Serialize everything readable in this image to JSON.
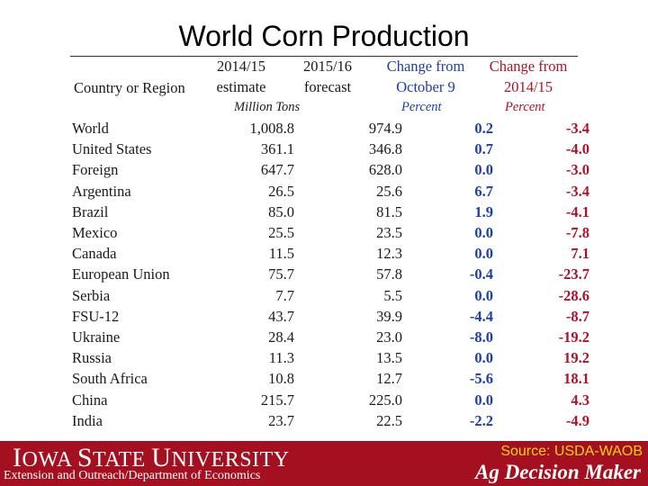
{
  "title": "World Corn Production",
  "headers": {
    "country_label": "Country or Region",
    "col1": [
      "2014/15",
      "estimate"
    ],
    "col2": [
      "2015/16",
      "forecast"
    ],
    "col3": [
      "Change from",
      "October 9"
    ],
    "col4": [
      "Change from",
      "2014/15"
    ],
    "units": "Million Tons",
    "pct3": "Percent",
    "pct4": "Percent"
  },
  "rows": [
    {
      "name": "World",
      "indent": 1,
      "estimate": "1,008.8",
      "forecast": "974.9",
      "chg_oct": "0.2",
      "chg_yr": "-3.4"
    },
    {
      "name": "United States",
      "indent": 2,
      "estimate": "361.1",
      "forecast": "346.8",
      "chg_oct": "0.7",
      "chg_yr": "-4.0"
    },
    {
      "name": "Foreign",
      "indent": 1,
      "estimate": "647.7",
      "forecast": "628.0",
      "chg_oct": "0.0",
      "chg_yr": "-3.0"
    },
    {
      "name": "Argentina",
      "indent": 2,
      "estimate": "26.5",
      "forecast": "25.6",
      "chg_oct": "6.7",
      "chg_yr": "-3.4"
    },
    {
      "name": "Brazil",
      "indent": 2,
      "estimate": "85.0",
      "forecast": "81.5",
      "chg_oct": "1.9",
      "chg_yr": "-4.1"
    },
    {
      "name": "Mexico",
      "indent": 2,
      "estimate": "25.5",
      "forecast": "23.5",
      "chg_oct": "0.0",
      "chg_yr": "-7.8"
    },
    {
      "name": "Canada",
      "indent": 2,
      "estimate": "11.5",
      "forecast": "12.3",
      "chg_oct": "0.0",
      "chg_yr": "7.1"
    },
    {
      "name": "European Union",
      "indent": 2,
      "estimate": "75.7",
      "forecast": "57.8",
      "chg_oct": "-0.4",
      "chg_yr": "-23.7"
    },
    {
      "name": "Serbia",
      "indent": 2,
      "estimate": "7.7",
      "forecast": "5.5",
      "chg_oct": "0.0",
      "chg_yr": "-28.6"
    },
    {
      "name": "FSU-12",
      "indent": 2,
      "estimate": "43.7",
      "forecast": "39.9",
      "chg_oct": "-4.4",
      "chg_yr": "-8.7"
    },
    {
      "name": "Ukraine",
      "indent": 3,
      "estimate": "28.4",
      "forecast": "23.0",
      "chg_oct": "-8.0",
      "chg_yr": "-19.2"
    },
    {
      "name": "Russia",
      "indent": 3,
      "estimate": "11.3",
      "forecast": "13.5",
      "chg_oct": "0.0",
      "chg_yr": "19.2"
    },
    {
      "name": "South Africa",
      "indent": 2,
      "estimate": "10.8",
      "forecast": "12.7",
      "chg_oct": "-5.6",
      "chg_yr": "18.1"
    },
    {
      "name": "China",
      "indent": 2,
      "estimate": "215.7",
      "forecast": "225.0",
      "chg_oct": "0.0",
      "chg_yr": "4.3"
    },
    {
      "name": "India",
      "indent": 2,
      "estimate": "23.7",
      "forecast": "22.5",
      "chg_oct": "-2.2",
      "chg_yr": "-4.9"
    }
  ],
  "footer": {
    "university_initial1": "I",
    "university_rest1": "OWA ",
    "university_initial2": "S",
    "university_rest2": "TATE ",
    "university_initial3": "U",
    "university_rest3": "NIVERSITY",
    "extension": "Extension and Outreach/Department of Economics",
    "source": "Source: USDA-WAOB",
    "brand": "Ag Decision Maker"
  },
  "colors": {
    "blue": "#1c3fa8",
    "red": "#b0122a",
    "footer_bg": "#a4101f",
    "source_yellow": "#f2d21c"
  }
}
